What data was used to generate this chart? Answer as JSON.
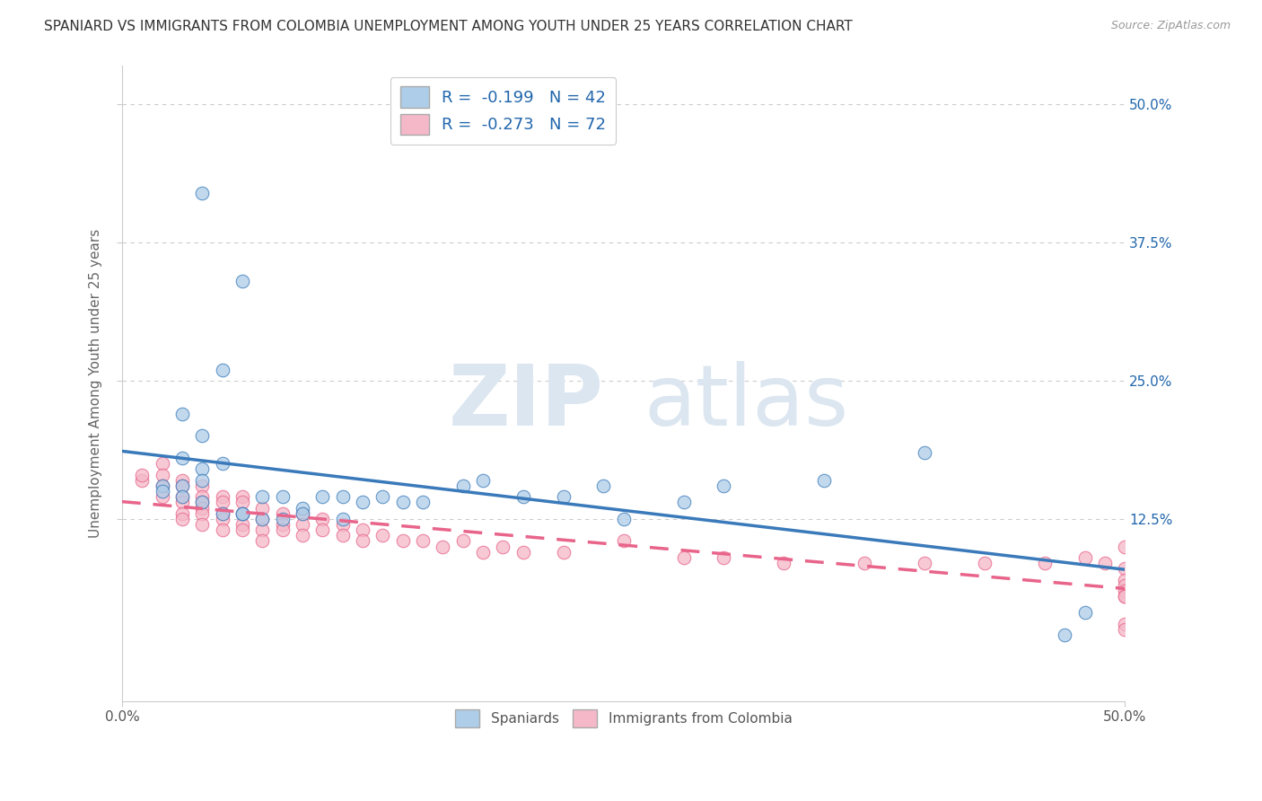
{
  "title": "SPANIARD VS IMMIGRANTS FROM COLOMBIA UNEMPLOYMENT AMONG YOUTH UNDER 25 YEARS CORRELATION CHART",
  "source": "Source: ZipAtlas.com",
  "ylabel": "Unemployment Among Youth under 25 years",
  "xlim": [
    0,
    0.5
  ],
  "ylim": [
    -0.04,
    0.535
  ],
  "xtick_positions": [
    0.0,
    0.5
  ],
  "xtick_labels": [
    "0.0%",
    "50.0%"
  ],
  "ytick_labels_right": [
    "12.5%",
    "25.0%",
    "37.5%",
    "50.0%"
  ],
  "yticks_right": [
    0.125,
    0.25,
    0.375,
    0.5
  ],
  "legend_r1": "R =  -0.199   N = 42",
  "legend_r2": "R =  -0.273   N = 72",
  "legend_label1": "Spaniards",
  "legend_label2": "Immigrants from Colombia",
  "color_blue": "#aecde8",
  "color_pink": "#f4b8c8",
  "color_blue_line": "#3a7aba",
  "color_pink_line": "#e8648a",
  "color_blue_dark": "#2166ac",
  "watermark_zip": "ZIP",
  "watermark_atlas": "atlas",
  "watermark_color": "#dce6f0",
  "background_color": "#ffffff",
  "grid_color": "#cccccc",
  "spaniards_x": [
    0.04,
    0.06,
    0.05,
    0.03,
    0.04,
    0.03,
    0.04,
    0.05,
    0.04,
    0.03,
    0.02,
    0.02,
    0.03,
    0.04,
    0.05,
    0.06,
    0.07,
    0.06,
    0.08,
    0.07,
    0.09,
    0.08,
    0.1,
    0.09,
    0.11,
    0.11,
    0.12,
    0.13,
    0.14,
    0.15,
    0.17,
    0.18,
    0.2,
    0.22,
    0.24,
    0.25,
    0.28,
    0.3,
    0.35,
    0.4,
    0.47,
    0.48
  ],
  "spaniards_y": [
    0.42,
    0.34,
    0.26,
    0.22,
    0.2,
    0.18,
    0.17,
    0.175,
    0.16,
    0.155,
    0.155,
    0.15,
    0.145,
    0.14,
    0.13,
    0.13,
    0.145,
    0.13,
    0.145,
    0.125,
    0.135,
    0.125,
    0.145,
    0.13,
    0.145,
    0.125,
    0.14,
    0.145,
    0.14,
    0.14,
    0.155,
    0.16,
    0.145,
    0.145,
    0.155,
    0.125,
    0.14,
    0.155,
    0.16,
    0.185,
    0.02,
    0.04
  ],
  "colombia_x": [
    0.01,
    0.01,
    0.02,
    0.02,
    0.02,
    0.02,
    0.03,
    0.03,
    0.03,
    0.03,
    0.03,
    0.03,
    0.04,
    0.04,
    0.04,
    0.04,
    0.04,
    0.04,
    0.05,
    0.05,
    0.05,
    0.05,
    0.05,
    0.06,
    0.06,
    0.06,
    0.06,
    0.06,
    0.07,
    0.07,
    0.07,
    0.07,
    0.08,
    0.08,
    0.08,
    0.09,
    0.09,
    0.09,
    0.1,
    0.1,
    0.11,
    0.11,
    0.12,
    0.12,
    0.13,
    0.14,
    0.15,
    0.16,
    0.17,
    0.18,
    0.19,
    0.2,
    0.22,
    0.25,
    0.28,
    0.3,
    0.33,
    0.37,
    0.4,
    0.43,
    0.46,
    0.48,
    0.49,
    0.5,
    0.5,
    0.5,
    0.5,
    0.5,
    0.5,
    0.5,
    0.5,
    0.5
  ],
  "colombia_y": [
    0.16,
    0.165,
    0.175,
    0.165,
    0.155,
    0.145,
    0.16,
    0.155,
    0.145,
    0.14,
    0.13,
    0.125,
    0.155,
    0.145,
    0.14,
    0.135,
    0.13,
    0.12,
    0.145,
    0.14,
    0.13,
    0.125,
    0.115,
    0.145,
    0.14,
    0.13,
    0.12,
    0.115,
    0.135,
    0.125,
    0.115,
    0.105,
    0.13,
    0.12,
    0.115,
    0.13,
    0.12,
    0.11,
    0.125,
    0.115,
    0.12,
    0.11,
    0.115,
    0.105,
    0.11,
    0.105,
    0.105,
    0.1,
    0.105,
    0.095,
    0.1,
    0.095,
    0.095,
    0.105,
    0.09,
    0.09,
    0.085,
    0.085,
    0.085,
    0.085,
    0.085,
    0.09,
    0.085,
    0.1,
    0.08,
    0.07,
    0.065,
    0.06,
    0.055,
    0.055,
    0.03,
    0.025
  ]
}
